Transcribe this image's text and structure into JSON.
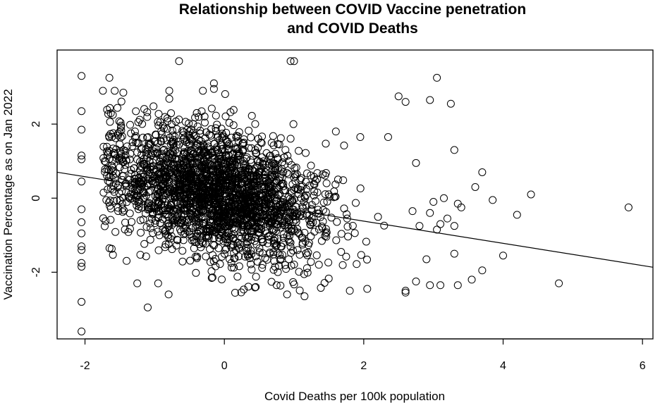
{
  "chart_data": {
    "type": "scatter",
    "title_lines": [
      "Relationship between COVID Vaccine penetration",
      "and COVID Deaths"
    ],
    "xlabel": "Covid Deaths per 100k population",
    "ylabel": "Vaccination Percentage as on Jan 2022",
    "xlim": [
      -2.4,
      6.15
    ],
    "ylim": [
      -3.8,
      4.0
    ],
    "xticks": [
      -2,
      0,
      2,
      4,
      6
    ],
    "yticks": [
      -2,
      0,
      2
    ],
    "grid": false,
    "legend": "none",
    "regression_line": {
      "intercept": -0.02,
      "slope": -0.3
    },
    "cluster": {
      "n": 2400,
      "x_mean": -0.1,
      "y_mean": 0.15,
      "x_sd": 0.75,
      "y_sd": 0.9,
      "corr": -0.35,
      "seed": 20220117
    },
    "points": [
      {
        "x": -2.05,
        "y": 3.3
      },
      {
        "x": -2.05,
        "y": 2.35
      },
      {
        "x": -2.05,
        "y": 1.85
      },
      {
        "x": -2.05,
        "y": 1.15
      },
      {
        "x": -2.05,
        "y": 1.05
      },
      {
        "x": -2.05,
        "y": 0.45
      },
      {
        "x": -2.05,
        "y": -0.3
      },
      {
        "x": -2.05,
        "y": -0.65
      },
      {
        "x": -2.05,
        "y": -0.95
      },
      {
        "x": -2.05,
        "y": -1.3
      },
      {
        "x": -2.05,
        "y": -1.4
      },
      {
        "x": -2.05,
        "y": -1.75
      },
      {
        "x": -2.05,
        "y": -1.85
      },
      {
        "x": -2.05,
        "y": -2.8
      },
      {
        "x": -2.05,
        "y": -3.6
      },
      {
        "x": -0.65,
        "y": 3.7
      },
      {
        "x": 0.95,
        "y": 3.7
      },
      {
        "x": 1.0,
        "y": 3.7
      },
      {
        "x": -0.15,
        "y": 3.1
      },
      {
        "x": -0.15,
        "y": 2.95
      },
      {
        "x": -1.65,
        "y": 3.25
      },
      {
        "x": 3.05,
        "y": 3.25
      },
      {
        "x": 2.5,
        "y": 2.75
      },
      {
        "x": 2.95,
        "y": 2.65
      },
      {
        "x": 3.25,
        "y": 2.55
      },
      {
        "x": 2.6,
        "y": 2.6
      },
      {
        "x": 3.3,
        "y": 1.3
      },
      {
        "x": 2.35,
        "y": 1.65
      },
      {
        "x": 1.6,
        "y": 1.8
      },
      {
        "x": 1.95,
        "y": 1.65
      },
      {
        "x": 3.7,
        "y": 0.7
      },
      {
        "x": 3.6,
        "y": 0.3
      },
      {
        "x": 3.85,
        "y": -0.05
      },
      {
        "x": 4.4,
        "y": 0.1
      },
      {
        "x": 4.2,
        "y": -0.45
      },
      {
        "x": 5.8,
        "y": -0.25
      },
      {
        "x": 4.8,
        "y": -2.3
      },
      {
        "x": 4.0,
        "y": -1.55
      },
      {
        "x": 3.7,
        "y": -1.95
      },
      {
        "x": 3.55,
        "y": -2.2
      },
      {
        "x": 3.35,
        "y": -2.35
      },
      {
        "x": 3.3,
        "y": -1.5
      },
      {
        "x": 3.1,
        "y": -2.35
      },
      {
        "x": 2.95,
        "y": -2.35
      },
      {
        "x": 2.6,
        "y": -2.55
      },
      {
        "x": 2.6,
        "y": -2.5
      },
      {
        "x": 2.75,
        "y": -2.25
      },
      {
        "x": 2.9,
        "y": -1.65
      },
      {
        "x": 3.15,
        "y": 0.0
      },
      {
        "x": 3.0,
        "y": -0.1
      },
      {
        "x": 2.95,
        "y": -0.4
      },
      {
        "x": 3.2,
        "y": -0.55
      },
      {
        "x": 3.4,
        "y": -0.25
      },
      {
        "x": 3.3,
        "y": -0.75
      },
      {
        "x": 3.05,
        "y": -0.85
      },
      {
        "x": 2.8,
        "y": -0.75
      },
      {
        "x": 3.1,
        "y": -0.7
      },
      {
        "x": 3.35,
        "y": -0.15
      },
      {
        "x": 2.7,
        "y": -0.35
      },
      {
        "x": 2.75,
        "y": 0.95
      },
      {
        "x": -1.1,
        "y": -2.95
      },
      {
        "x": -0.8,
        "y": -2.6
      },
      {
        "x": 1.15,
        "y": -2.65
      },
      {
        "x": 0.9,
        "y": -2.6
      },
      {
        "x": 1.8,
        "y": -2.5
      },
      {
        "x": 2.05,
        "y": -2.45
      },
      {
        "x": -1.25,
        "y": -2.3
      },
      {
        "x": -0.95,
        "y": -2.3
      },
      {
        "x": 0.45,
        "y": -2.4
      },
      {
        "x": 0.75,
        "y": -2.35
      },
      {
        "x": -1.6,
        "y": 2.25
      },
      {
        "x": -1.45,
        "y": 2.85
      }
    ]
  }
}
